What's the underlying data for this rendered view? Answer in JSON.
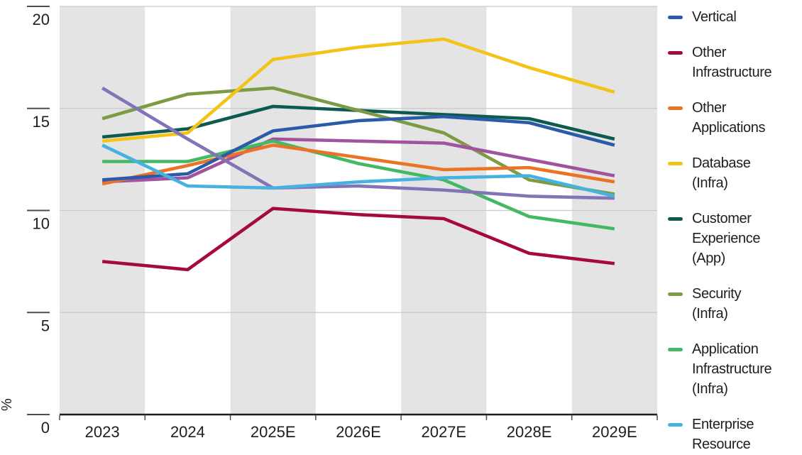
{
  "chart": {
    "ylabel": "%",
    "x_labels": [
      "2023",
      "2024",
      "2025E",
      "2026E",
      "2027E",
      "2028E",
      "2029E"
    ],
    "y_tick_labels": [
      "0",
      "5",
      "10",
      "15",
      "20"
    ]
  },
  "chart_data": {
    "type": "line",
    "x": [
      "2023",
      "2024",
      "2025E",
      "2026E",
      "2027E",
      "2028E",
      "2029E"
    ],
    "title": "",
    "xlabel": "",
    "ylabel": "%",
    "ylim": [
      0,
      20
    ],
    "yticks": [
      0,
      5,
      10,
      15,
      20
    ],
    "grid": "horizontal-light-gray",
    "background_bands": "alternating vertical year bands, gray on 2023/2025E/2027E/2029E columns, white between",
    "legend_position": "right",
    "series": [
      {
        "name": "Vertical",
        "color": "#2a5ba9",
        "legend_visible": true,
        "values": [
          11.5,
          11.8,
          13.9,
          14.4,
          14.6,
          14.3,
          13.2
        ]
      },
      {
        "name": "Other Infrastructure",
        "color": "#a60a3d",
        "legend_visible": true,
        "values": [
          7.5,
          7.1,
          10.1,
          9.8,
          9.6,
          7.9,
          7.4
        ]
      },
      {
        "name": "Other Applications",
        "color": "#ea7325",
        "legend_visible": true,
        "values": [
          11.3,
          12.2,
          13.2,
          12.6,
          12.0,
          12.1,
          11.4
        ]
      },
      {
        "name": "Database (Infra)",
        "color": "#f3c317",
        "legend_visible": true,
        "values": [
          13.4,
          13.8,
          17.4,
          18.0,
          18.4,
          17.0,
          15.8
        ]
      },
      {
        "name": "Customer Experience (App)",
        "color": "#0e5a50",
        "legend_visible": true,
        "values": [
          13.6,
          14.0,
          15.1,
          14.9,
          14.7,
          14.5,
          13.5
        ]
      },
      {
        "name": "Security (Infra)",
        "color": "#7d9b44",
        "legend_visible": true,
        "values": [
          14.5,
          15.7,
          16.0,
          14.9,
          13.8,
          11.5,
          10.8
        ]
      },
      {
        "name": "Application Infrastructure (Infra)",
        "color": "#44b863",
        "legend_visible": true,
        "values": [
          12.4,
          12.4,
          13.4,
          12.3,
          11.5,
          9.7,
          9.1
        ]
      },
      {
        "name": "Enterprise Resource (label truncated at image edge)",
        "color": "#46b2e2",
        "legend_visible": true,
        "values": [
          13.2,
          11.2,
          11.1,
          11.4,
          11.6,
          11.7,
          10.7
        ]
      },
      {
        "name": "(legend entry not visible - magenta line)",
        "color": "#a1539f",
        "legend_visible": false,
        "values": [
          11.4,
          11.6,
          13.5,
          13.4,
          13.3,
          12.5,
          11.7
        ]
      },
      {
        "name": "(legend entry not visible - violet line)",
        "color": "#8374b7",
        "legend_visible": false,
        "values": [
          16.0,
          13.5,
          11.1,
          11.2,
          11.0,
          10.7,
          10.6
        ]
      }
    ]
  },
  "legend": {
    "items": [
      {
        "label": "Vertical",
        "lines": [
          "Vertical"
        ],
        "color": "#2a5ba9"
      },
      {
        "label": "Other Infrastructure",
        "lines": [
          "Other",
          "Infrastructure"
        ],
        "color": "#a60a3d"
      },
      {
        "label": "Other Applications",
        "lines": [
          "Other",
          "Applications"
        ],
        "color": "#ea7325"
      },
      {
        "label": "Database (Infra)",
        "lines": [
          "Database",
          "(Infra)"
        ],
        "color": "#f3c317"
      },
      {
        "label": "Customer Experience (App)",
        "lines": [
          "Customer",
          "Experience",
          "(App)"
        ],
        "color": "#0e5a50"
      },
      {
        "label": "Security (Infra)",
        "lines": [
          "Security",
          "(Infra)"
        ],
        "color": "#7d9b44"
      },
      {
        "label": "Application Infrastructure (Infra)",
        "lines": [
          "Application",
          "Infrastructure",
          "(Infra)"
        ],
        "color": "#44b863"
      },
      {
        "label": "Enterprise Resource",
        "lines": [
          "Enterprise",
          "Resource"
        ],
        "color": "#46b2e2"
      }
    ]
  },
  "style": {
    "band_gray": "#e4e4e4",
    "gridline_color": "#c9c9c9",
    "axis_color": "#1e1e1e",
    "tick_color": "#4d4d4d",
    "text_color": "#1e1e1e"
  }
}
